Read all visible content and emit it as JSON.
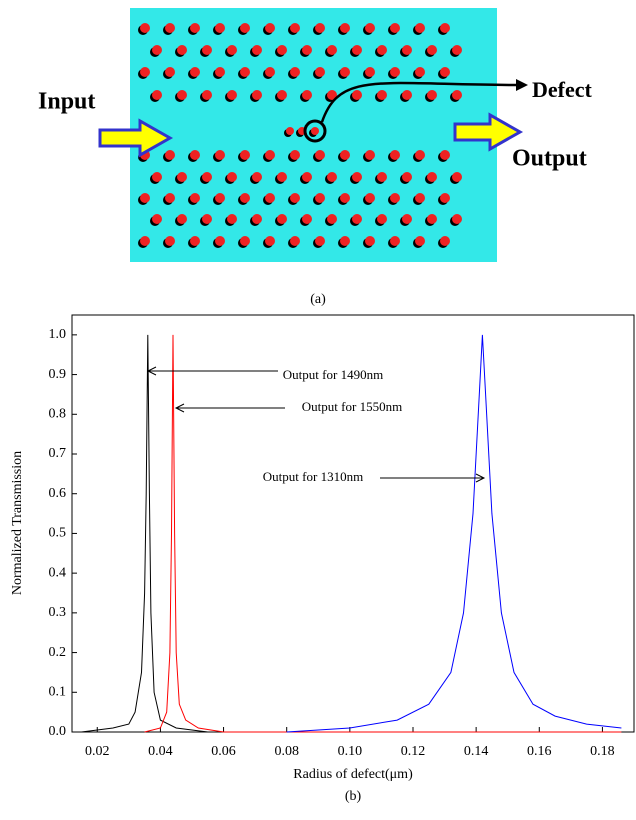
{
  "diagram": {
    "input_label": "Input",
    "output_label": "Output",
    "defect_label": "Defect",
    "caption": "(a)"
  },
  "chart_data": {
    "type": "line",
    "caption": "(b)",
    "x_label": "Radius of defect(μm)",
    "y_label": "Normalized Transmission",
    "xlim": [
      0.012,
      0.19
    ],
    "ylim": [
      0,
      1.05
    ],
    "xticks": [
      0.02,
      0.04,
      0.06,
      0.08,
      {
        "value": 0.1,
        "label": "0.10"
      },
      0.12,
      0.14,
      0.16,
      0.18
    ],
    "yticks": [
      {
        "value": 0,
        "label": "0.0"
      },
      0.1,
      0.2,
      0.3,
      0.4,
      0.5,
      0.6,
      0.7,
      0.8,
      0.9,
      {
        "value": 1,
        "label": "1.0"
      }
    ],
    "annotations": [
      "Output for 1490nm",
      "Output for 1550nm",
      "Output for 1310nm"
    ],
    "series": [
      {
        "color": "#000000",
        "x": [
          0.015,
          0.025,
          0.03,
          0.032,
          0.034,
          0.035,
          0.0355,
          0.036,
          0.0365,
          0.037,
          0.038,
          0.04,
          0.045,
          0.055
        ],
        "values": [
          0,
          0.01,
          0.02,
          0.05,
          0.15,
          0.35,
          0.6,
          1.0,
          0.6,
          0.3,
          0.1,
          0.03,
          0.01,
          0
        ]
      },
      {
        "color": "#ff0000",
        "x": [
          0.035,
          0.04,
          0.042,
          0.043,
          0.0435,
          0.044,
          0.0445,
          0.045,
          0.046,
          0.048,
          0.052,
          0.06,
          0.186
        ],
        "values": [
          0,
          0.01,
          0.05,
          0.2,
          0.5,
          1.0,
          0.5,
          0.2,
          0.07,
          0.03,
          0.01,
          0,
          0
        ]
      },
      {
        "color": "#0000ff",
        "x": [
          0.08,
          0.1,
          0.115,
          0.125,
          0.132,
          0.136,
          0.139,
          0.141,
          0.142,
          0.143,
          0.145,
          0.148,
          0.152,
          0.158,
          0.165,
          0.175,
          0.186
        ],
        "values": [
          0,
          0.01,
          0.03,
          0.07,
          0.15,
          0.3,
          0.55,
          0.85,
          1.0,
          0.85,
          0.55,
          0.3,
          0.15,
          0.07,
          0.04,
          0.02,
          0.01
        ]
      }
    ]
  }
}
